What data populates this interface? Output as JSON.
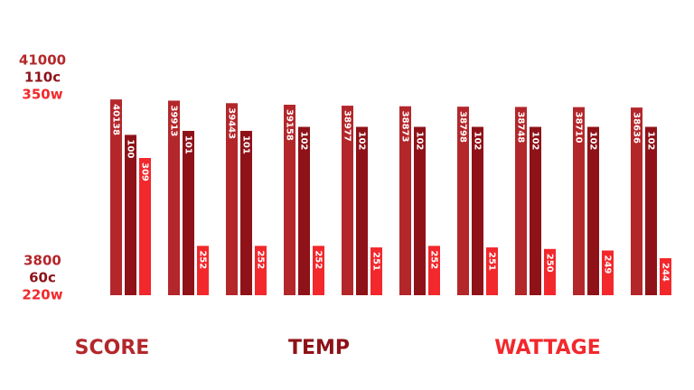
{
  "chart_data": {
    "type": "bar",
    "categories": [
      null,
      null,
      null,
      null,
      null,
      null,
      null,
      null,
      null,
      null
    ],
    "series": [
      {
        "name": "SCORE",
        "color": "#b3272b",
        "axis": "y",
        "values": [
          40138,
          39913,
          39443,
          39158,
          38977,
          38873,
          38798,
          38748,
          38710,
          38636
        ]
      },
      {
        "name": "TEMP",
        "color": "#8e1218",
        "axis": "y2",
        "values": [
          100,
          101,
          101,
          102,
          102,
          102,
          102,
          102,
          102,
          102
        ]
      },
      {
        "name": "WATTAGE",
        "color": "#f2282c",
        "axis": "y3",
        "values": [
          309,
          252,
          252,
          252,
          251,
          252,
          251,
          250,
          249,
          244
        ]
      }
    ],
    "ylim": [
      3800,
      41000
    ],
    "yticks": [
      3800,
      41000
    ],
    "y2lim": [
      60,
      110
    ],
    "y2ticks": [
      {
        "value": 60,
        "label": "60c"
      },
      {
        "value": 110,
        "label": "110c"
      }
    ],
    "y3lim": [
      220,
      350
    ],
    "y3ticks": [
      {
        "value": 220,
        "label": "220w"
      },
      {
        "value": 350,
        "label": "350w"
      }
    ]
  }
}
